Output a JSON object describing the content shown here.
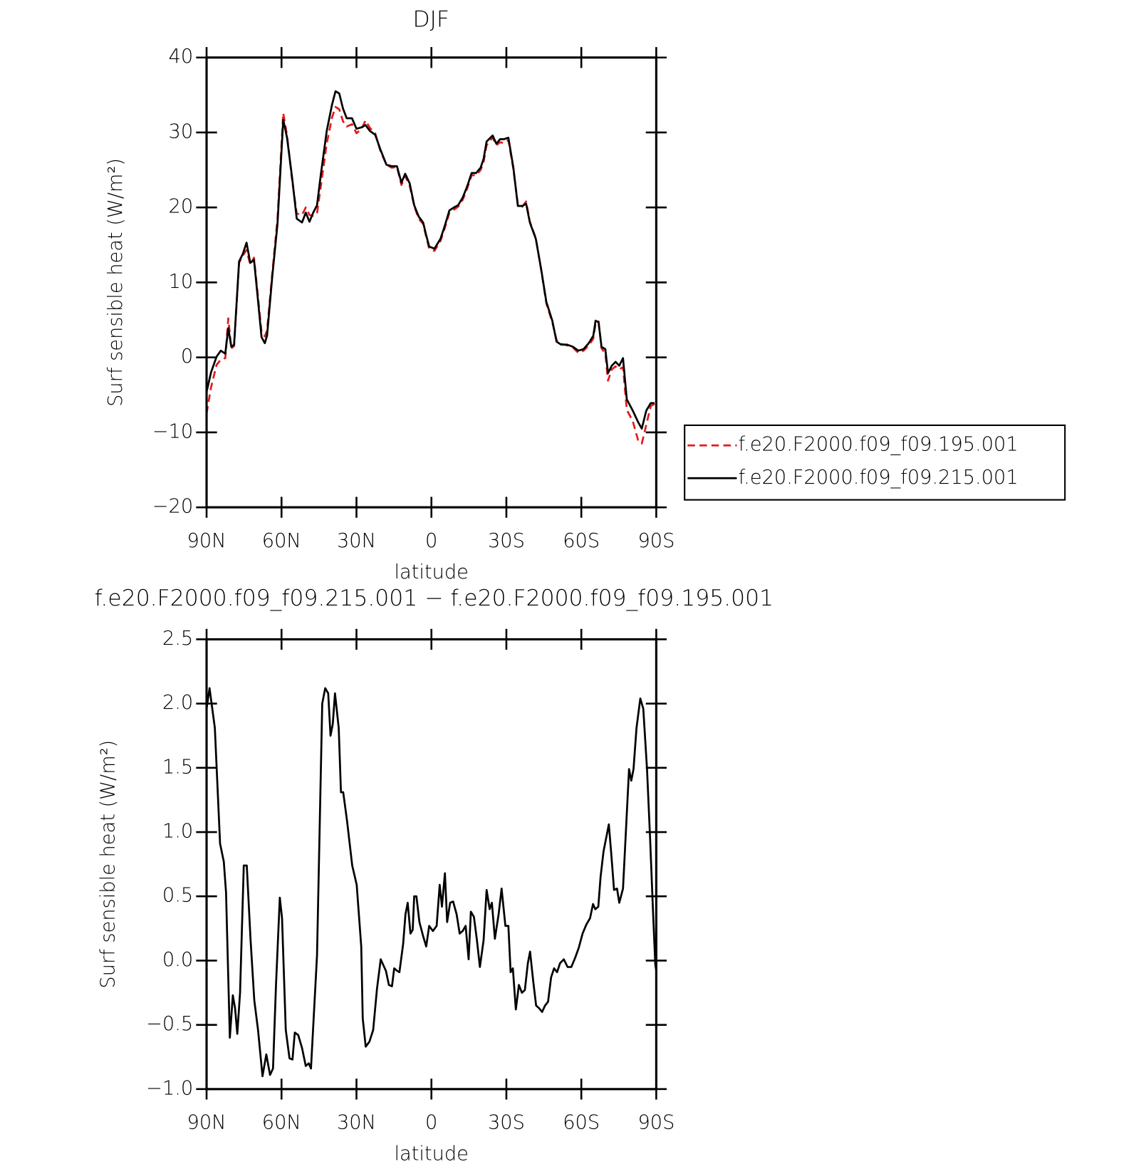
{
  "chart_data": [
    {
      "type": "line",
      "title": "DJF",
      "xlabel": "latitude",
      "ylabel": "Surf sensible heat (W/m²)",
      "xlim": [
        90,
        -90
      ],
      "xticks": [
        {
          "value": 90,
          "label": "90N"
        },
        {
          "value": 60,
          "label": "60N"
        },
        {
          "value": 30,
          "label": "30N"
        },
        0,
        {
          "value": -30,
          "label": "30S"
        },
        {
          "value": -60,
          "label": "60S"
        },
        {
          "value": -90,
          "label": "90S"
        }
      ],
      "ylim": [
        -20,
        40
      ],
      "yticks": [
        {
          "value": -20,
          "label": "−20"
        },
        {
          "value": -10,
          "label": "−10"
        },
        0,
        10,
        20,
        30,
        40
      ],
      "legend": "right",
      "x": [
        90,
        88.2,
        86,
        84.3,
        82.5,
        81.3,
        80.1,
        79,
        77,
        75.5,
        74,
        72.5,
        71,
        69.8,
        68,
        66.7,
        65.8,
        63.7,
        61.6,
        59.3,
        57.8,
        55.7,
        53.9,
        51.8,
        50.3,
        48.8,
        47.3,
        45.8,
        44.3,
        41.9,
        39.8,
        38.4,
        36.9,
        35.4,
        33.9,
        31.8,
        30,
        27.9,
        26.4,
        24.6,
        22.5,
        20.4,
        18,
        15.9,
        13.8,
        12,
        10.5,
        8.7,
        6.9,
        5.1,
        3.3,
        2.1,
        0.9,
        -1.2,
        -3.6,
        -5.4,
        -7.2,
        -9,
        -10.7,
        -12.5,
        -14.3,
        -16.1,
        -17.9,
        -19.7,
        -20.9,
        -22.1,
        -23.3,
        -24.5,
        -26,
        -27.5,
        -29,
        -30.8,
        -32.8,
        -34.6,
        -36.4,
        -37.9,
        -39.4,
        -41.8,
        -43.9,
        -46,
        -48.4,
        -50.1,
        -51.9,
        -54.3,
        -56.7,
        -58.8,
        -60.9,
        -63,
        -64.8,
        -65.7,
        -66.9,
        -68.1,
        -69.6,
        -70.7,
        -72.2,
        -73.7,
        -75.2,
        -76.7,
        -78.2,
        -80.6,
        -82.7,
        -84.2,
        -86,
        -87.8,
        -89.3
      ],
      "series": [
        {
          "name": "f.e20.F2000.f09_f09.195.001",
          "color": "#e41a1c",
          "style": "dashed",
          "values": [
            -7.5,
            -4,
            -1,
            -0.3,
            -0.1,
            5.2,
            1.2,
            1.5,
            12.6,
            13.6,
            14.3,
            12.4,
            13.3,
            9.3,
            3.4,
            2.8,
            3.6,
            11.2,
            18.5,
            32.6,
            29.6,
            23.5,
            19.2,
            19,
            20,
            19,
            18.9,
            19.2,
            22.8,
            28.5,
            32,
            33.4,
            33.1,
            31.5,
            30.8,
            31.1,
            29.9,
            30.5,
            31.6,
            30.6,
            29.9,
            27.5,
            25.7,
            25.3,
            25.4,
            23,
            24.2,
            22.9,
            20.2,
            18.5,
            17.8,
            16.1,
            14.5,
            14.2,
            15.5,
            17.3,
            19.3,
            19.7,
            20.1,
            21,
            22.5,
            24.3,
            24.3,
            25,
            26.1,
            28.3,
            28.9,
            29.3,
            28.3,
            28.7,
            28.6,
            29,
            25.1,
            20.4,
            20.1,
            20.8,
            18.1,
            15.9,
            11.7,
            7.2,
            4.7,
            2.3,
            1.8,
            1.6,
            1.3,
            0.6,
            0.9,
            1.6,
            2.5,
            4.5,
            4.8,
            1.2,
            0.5,
            -3.1,
            -1.6,
            -1.2,
            -1.6,
            -1.3,
            -7,
            -8.5,
            -11,
            -11.5,
            -9,
            -6.5,
            -6.2
          ]
        },
        {
          "name": "f.e20.F2000.f09_f09.215.001",
          "color": "#000000",
          "style": "solid",
          "values": [
            -4.6,
            -2,
            0.1,
            0.9,
            0.5,
            3.9,
            1.4,
            1.7,
            12.8,
            13.8,
            15.3,
            12.6,
            13,
            8.9,
            2.7,
            1.9,
            2.9,
            10.8,
            17.8,
            31.7,
            29.3,
            23.8,
            18.5,
            18,
            19.3,
            18.1,
            19.3,
            20.3,
            24.3,
            30.2,
            33.7,
            35.5,
            35.2,
            33.2,
            31.9,
            31.9,
            30.5,
            30.7,
            31,
            30.2,
            29.7,
            27.7,
            25.7,
            25.5,
            25.5,
            23.3,
            24.5,
            23.2,
            20.3,
            18.8,
            18,
            16.3,
            14.8,
            14.5,
            15.8,
            17.6,
            19.6,
            20,
            20.3,
            21.3,
            22.8,
            24.6,
            24.6,
            25.3,
            26.5,
            28.8,
            29.2,
            29.6,
            28.5,
            29.1,
            29.1,
            29.3,
            25.3,
            20.2,
            20.2,
            20.5,
            18,
            15.8,
            11.8,
            7.4,
            4.9,
            2.1,
            1.7,
            1.7,
            1.4,
            0.9,
            1.1,
            1.9,
            2.9,
            4.9,
            4.7,
            1.4,
            1.1,
            -2.1,
            -1.1,
            -0.6,
            -1.1,
            -0.1,
            -5.6,
            -7.1,
            -8.6,
            -9.5,
            -7.1,
            -6.1,
            -6.1
          ]
        }
      ]
    },
    {
      "type": "line",
      "title": "f.e20.F2000.f09_f09.215.001 − f.e20.F2000.f09_f09.195.001",
      "xlabel": "latitude",
      "ylabel": "Surf sensible heat (W/m²)",
      "xlim": [
        90,
        -90
      ],
      "xticks": [
        {
          "value": 90,
          "label": "90N"
        },
        {
          "value": 60,
          "label": "60N"
        },
        {
          "value": 30,
          "label": "30N"
        },
        0,
        {
          "value": -30,
          "label": "30S"
        },
        {
          "value": -60,
          "label": "60S"
        },
        {
          "value": -90,
          "label": "90S"
        }
      ],
      "ylim": [
        -1,
        2.5
      ],
      "yticks": [
        {
          "value": -1,
          "label": "−1.0"
        },
        {
          "value": -0.5,
          "label": "−0.5"
        },
        {
          "value": 0,
          "label": "0.0"
        },
        0.5,
        {
          "value": 1,
          "label": "1.0"
        },
        1.5,
        {
          "value": 2,
          "label": "2.0"
        },
        2.5
      ],
      "x": [
        90,
        88.8,
        86.7,
        84.6,
        83.1,
        82.2,
        80.7,
        79.5,
        78.6,
        77.7,
        76.6,
        75.1,
        73.9,
        72.4,
        70.9,
        69.4,
        67.6,
        66.1,
        64.6,
        63.4,
        62.2,
        60.7,
        59.8,
        58.3,
        56.8,
        55.6,
        54.7,
        53.3,
        51.8,
        50.3,
        49.1,
        48.2,
        45.8,
        43.7,
        42.5,
        41.3,
        40.4,
        39.5,
        38.6,
        37.1,
        36.2,
        35.3,
        33.8,
        31.7,
        29.9,
        28.1,
        27.5,
        26.3,
        24.8,
        23.3,
        21.8,
        20.3,
        18.2,
        17,
        15.8,
        14.9,
        13.7,
        12.8,
        11.3,
        10.4,
        9.5,
        8.4,
        7.5,
        6.9,
        6,
        4.8,
        3.3,
        2.1,
        0.9,
        -0.6,
        -2.1,
        -3.3,
        -4.2,
        -5.4,
        -6.3,
        -7.5,
        -8.7,
        -10.1,
        -11.3,
        -12.5,
        -13.7,
        -14.9,
        -15.8,
        -17,
        -18.2,
        -19.4,
        -20.9,
        -22.1,
        -23.3,
        -24.2,
        -25.4,
        -26.9,
        -28.1,
        -29.6,
        -30.8,
        -31.7,
        -32.6,
        -33.8,
        -35,
        -36.2,
        -37.4,
        -38.6,
        -39.5,
        -40.7,
        -41.9,
        -43.1,
        -44.3,
        -45.5,
        -46.7,
        -47.9,
        -49.1,
        -50.3,
        -51.5,
        -53,
        -54.5,
        -56,
        -57.5,
        -59,
        -60.5,
        -62,
        -63.5,
        -64.7,
        -65.6,
        -66.8,
        -67.7,
        -68.9,
        -71,
        -71.9,
        -73.1,
        -74.3,
        -75.2,
        -76.7,
        -77.9,
        -79.1,
        -80,
        -80.9,
        -82.1,
        -83.6,
        -84.8,
        -86.3,
        -87.5,
        -88.7,
        -89.6,
        -90
      ],
      "series": [
        {
          "color": "#000000",
          "style": "solid",
          "values": [
            1.96,
            2.12,
            1.81,
            0.91,
            0.77,
            0.53,
            -0.6,
            -0.27,
            -0.37,
            -0.57,
            -0.25,
            0.74,
            0.74,
            0.16,
            -0.31,
            -0.54,
            -0.9,
            -0.73,
            -0.89,
            -0.84,
            -0.19,
            0.49,
            0.33,
            -0.54,
            -0.76,
            -0.77,
            -0.56,
            -0.58,
            -0.68,
            -0.82,
            -0.8,
            -0.84,
            0.04,
            2,
            2.12,
            2.08,
            1.75,
            1.84,
            2.08,
            1.81,
            1.31,
            1.31,
            1.09,
            0.74,
            0.59,
            0.11,
            -0.45,
            -0.67,
            -0.63,
            -0.54,
            -0.22,
            0.01,
            -0.08,
            -0.19,
            -0.2,
            -0.06,
            -0.08,
            -0.09,
            0.13,
            0.36,
            0.45,
            0.21,
            0.24,
            0.5,
            0.5,
            0.3,
            0.19,
            0.11,
            0.27,
            0.23,
            0.27,
            0.59,
            0.42,
            0.68,
            0.3,
            0.45,
            0.46,
            0.36,
            0.21,
            0.23,
            0.27,
            0.01,
            0.38,
            0.34,
            0.16,
            -0.05,
            0.16,
            0.55,
            0.4,
            0.45,
            0.17,
            0.36,
            0.56,
            0.27,
            0.27,
            -0.09,
            -0.06,
            -0.38,
            -0.19,
            -0.25,
            -0.23,
            -0.02,
            0.07,
            -0.15,
            -0.35,
            -0.37,
            -0.4,
            -0.35,
            -0.32,
            -0.13,
            -0.06,
            -0.09,
            -0.02,
            0.01,
            -0.05,
            -0.05,
            0.02,
            0.1,
            0.21,
            0.28,
            0.33,
            0.44,
            0.4,
            0.42,
            0.65,
            0.85,
            1.06,
            0.85,
            0.55,
            0.56,
            0.45,
            0.56,
            1.03,
            1.49,
            1.4,
            1.49,
            1.81,
            2.04,
            1.96,
            1.49,
            0.97,
            0.39,
            -0.03,
            -0.08
          ]
        }
      ]
    }
  ]
}
